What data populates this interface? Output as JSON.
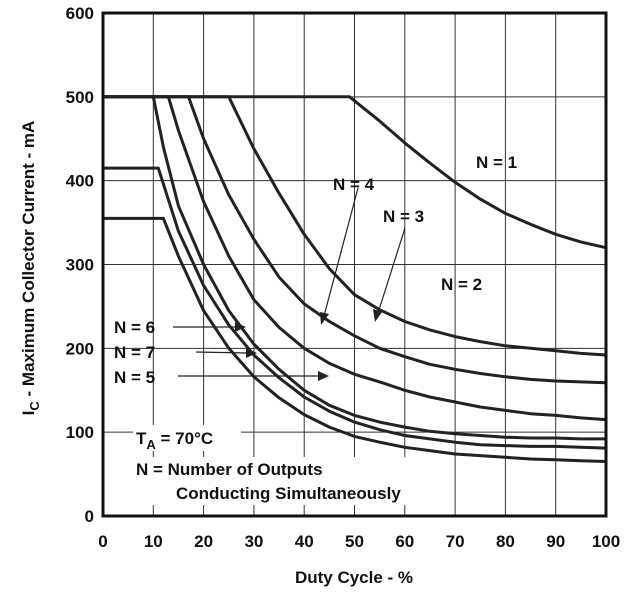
{
  "chart_data": {
    "type": "line",
    "xlabel": "Duty Cycle -  %",
    "ylabel": {
      "main": "I",
      "sub": "C",
      "rest": " - Maximum Collector Current -  mA"
    },
    "xlim": [
      0,
      100
    ],
    "ylim": [
      0,
      600
    ],
    "xticks": [
      "0",
      "10",
      "20",
      "30",
      "40",
      "50",
      "60",
      "70",
      "80",
      "90",
      "100"
    ],
    "yticks": [
      "0",
      "100",
      "200",
      "300",
      "400",
      "500",
      "600"
    ],
    "grid": true,
    "series": [
      {
        "name": "N = 1",
        "points": [
          [
            0,
            500
          ],
          [
            49,
            500
          ],
          [
            55,
            471
          ],
          [
            60,
            445
          ],
          [
            65,
            421
          ],
          [
            70,
            398
          ],
          [
            75,
            378
          ],
          [
            80,
            361
          ],
          [
            85,
            348
          ],
          [
            90,
            336
          ],
          [
            95,
            327
          ],
          [
            100,
            320
          ]
        ]
      },
      {
        "name": "N = 2",
        "points": [
          [
            0,
            500
          ],
          [
            25,
            500
          ],
          [
            30,
            438
          ],
          [
            35,
            385
          ],
          [
            40,
            336
          ],
          [
            45,
            295
          ],
          [
            50,
            264
          ],
          [
            55,
            246
          ],
          [
            60,
            232
          ],
          [
            65,
            222
          ],
          [
            70,
            214
          ],
          [
            75,
            208
          ],
          [
            80,
            203
          ],
          [
            85,
            200
          ],
          [
            90,
            197
          ],
          [
            95,
            194
          ],
          [
            100,
            192
          ]
        ]
      },
      {
        "name": "N = 3",
        "points": [
          [
            0,
            500
          ],
          [
            17,
            500
          ],
          [
            20,
            450
          ],
          [
            25,
            383
          ],
          [
            30,
            330
          ],
          [
            35,
            285
          ],
          [
            40,
            253
          ],
          [
            45,
            232
          ],
          [
            50,
            215
          ],
          [
            55,
            200
          ],
          [
            60,
            190
          ],
          [
            65,
            181
          ],
          [
            70,
            175
          ],
          [
            75,
            170
          ],
          [
            80,
            166
          ],
          [
            85,
            163
          ],
          [
            90,
            161
          ],
          [
            95,
            160
          ],
          [
            100,
            159
          ]
        ]
      },
      {
        "name": "N = 4",
        "points": [
          [
            0,
            500
          ],
          [
            13,
            500
          ],
          [
            15,
            460
          ],
          [
            20,
            375
          ],
          [
            25,
            310
          ],
          [
            30,
            258
          ],
          [
            35,
            225
          ],
          [
            40,
            200
          ],
          [
            45,
            182
          ],
          [
            50,
            169
          ],
          [
            55,
            160
          ],
          [
            60,
            150
          ],
          [
            65,
            142
          ],
          [
            70,
            136
          ],
          [
            75,
            130
          ],
          [
            80,
            126
          ],
          [
            85,
            122
          ],
          [
            90,
            120
          ],
          [
            95,
            117
          ],
          [
            100,
            115
          ]
        ]
      },
      {
        "name": "N = 5",
        "points": [
          [
            0,
            415
          ],
          [
            11,
            415
          ],
          [
            15,
            340
          ],
          [
            20,
            275
          ],
          [
            25,
            228
          ],
          [
            30,
            192
          ],
          [
            35,
            165
          ],
          [
            40,
            142
          ],
          [
            45,
            125
          ],
          [
            50,
            112
          ],
          [
            55,
            103
          ],
          [
            60,
            96
          ],
          [
            65,
            92
          ],
          [
            70,
            88
          ],
          [
            75,
            85
          ],
          [
            80,
            84
          ],
          [
            85,
            83
          ],
          [
            90,
            83
          ],
          [
            95,
            82
          ],
          [
            100,
            81
          ]
        ]
      },
      {
        "name": "N = 6",
        "points": [
          [
            0,
            500
          ],
          [
            10,
            500
          ],
          [
            12,
            440
          ],
          [
            15,
            370
          ],
          [
            20,
            300
          ],
          [
            25,
            245
          ],
          [
            30,
            205
          ],
          [
            35,
            175
          ],
          [
            40,
            150
          ],
          [
            45,
            132
          ],
          [
            50,
            120
          ],
          [
            55,
            112
          ],
          [
            60,
            106
          ],
          [
            65,
            101
          ],
          [
            70,
            98
          ],
          [
            75,
            96
          ],
          [
            80,
            94
          ],
          [
            85,
            93
          ],
          [
            90,
            93
          ],
          [
            95,
            92
          ],
          [
            100,
            92
          ]
        ]
      },
      {
        "name": "N = 7",
        "points": [
          [
            0,
            355
          ],
          [
            12,
            355
          ],
          [
            15,
            310
          ],
          [
            20,
            245
          ],
          [
            25,
            200
          ],
          [
            30,
            166
          ],
          [
            35,
            141
          ],
          [
            40,
            121
          ],
          [
            45,
            106
          ],
          [
            50,
            95
          ],
          [
            55,
            88
          ],
          [
            60,
            82
          ],
          [
            65,
            78
          ],
          [
            70,
            74
          ],
          [
            75,
            72
          ],
          [
            80,
            70
          ],
          [
            85,
            68
          ],
          [
            90,
            67
          ],
          [
            95,
            66
          ],
          [
            100,
            65
          ]
        ]
      }
    ],
    "annotations": {
      "n1": "N = 1",
      "n2": "N = 2",
      "n3": "N = 3",
      "n4": "N = 4",
      "n5": "N = 5",
      "n6": "N = 6",
      "n7": "N = 7",
      "ta_main": "T",
      "ta_sub": "A",
      "ta_rest": " = 70°C",
      "note_line1": "N = Number of Outputs",
      "note_line2": "Conducting Simultaneously"
    }
  }
}
